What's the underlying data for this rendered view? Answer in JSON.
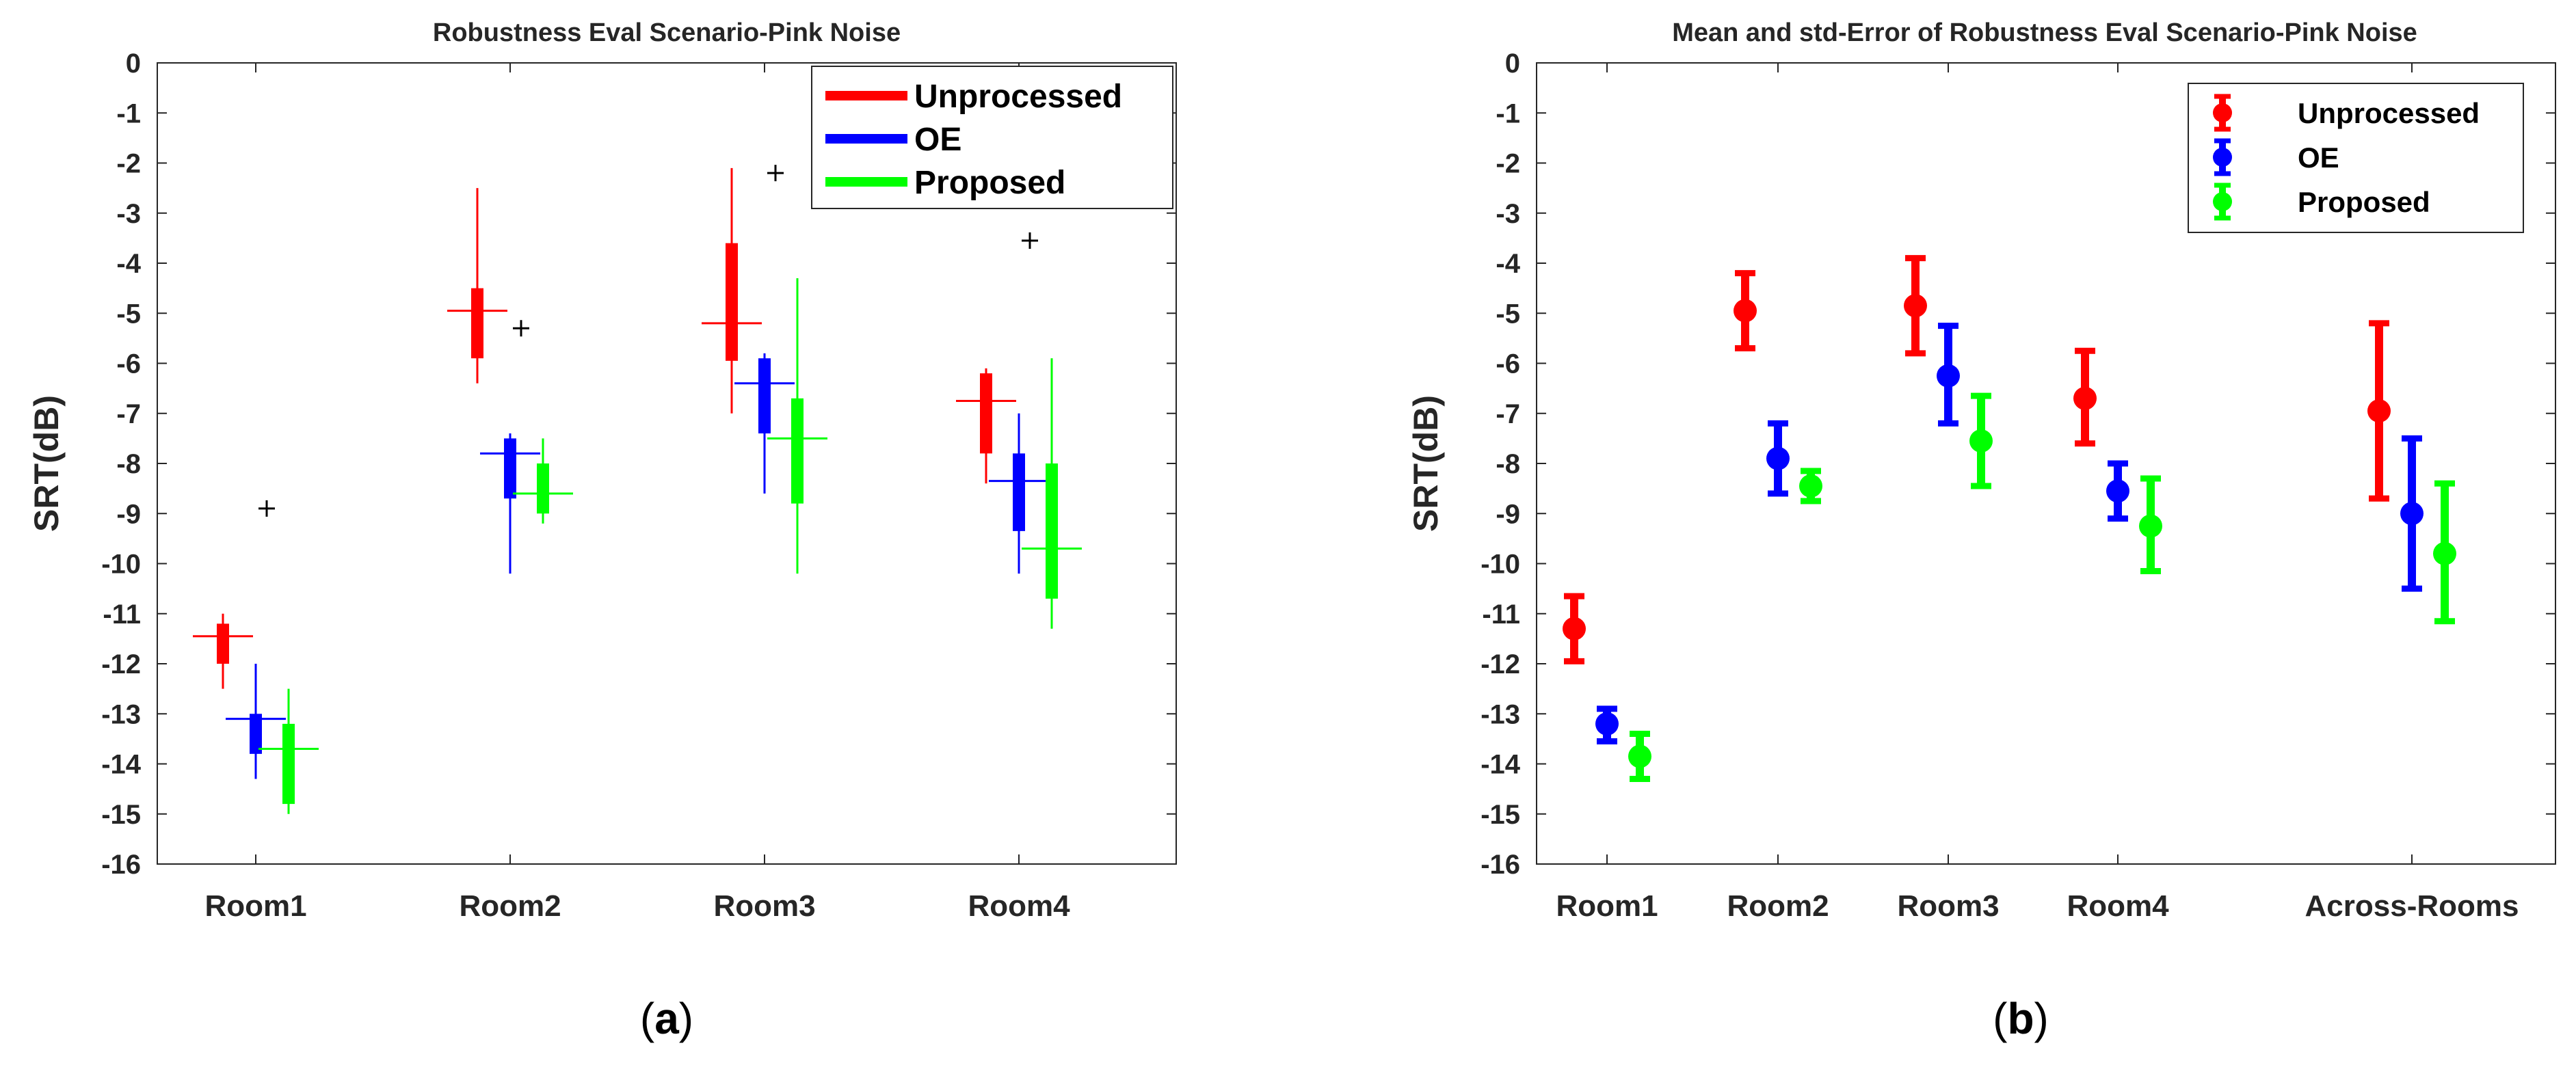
{
  "chart_data": [
    {
      "type": "boxplot",
      "title": "Robustness Eval Scenario-Pink Noise",
      "panel_label": "(a)",
      "panel_label_letter": "a",
      "ylabel": "SRT(dB)",
      "xlabel": "",
      "ylim": [
        -16,
        0
      ],
      "yticks": [
        0,
        -1,
        -2,
        -3,
        -4,
        -5,
        -6,
        -7,
        -8,
        -9,
        -10,
        -11,
        -12,
        -13,
        -14,
        -15,
        -16
      ],
      "grid": false,
      "legend_position": "top-right",
      "categories": [
        "Room1",
        "Room2",
        "Room3",
        "Room4"
      ],
      "series": [
        {
          "name": "Unprocessed",
          "color": "#ff0000",
          "boxes": [
            {
              "whisker_high": -11.0,
              "q3": -11.2,
              "median": -11.45,
              "q1": -12.0,
              "whisker_low": -12.5,
              "outliers": [
                -8.9
              ]
            },
            {
              "whisker_high": -2.5,
              "q3": -4.5,
              "median": -4.95,
              "q1": -5.9,
              "whisker_low": -6.4,
              "outliers": [
                -5.3
              ]
            },
            {
              "whisker_high": -2.1,
              "q3": -3.6,
              "median": -5.2,
              "q1": -5.95,
              "whisker_low": -7.0,
              "outliers": [
                -2.2
              ]
            },
            {
              "whisker_high": -6.1,
              "q3": -6.2,
              "median": -6.75,
              "q1": -7.8,
              "whisker_low": -8.4,
              "outliers": [
                -3.55
              ]
            }
          ]
        },
        {
          "name": "OE",
          "color": "#0000ff",
          "boxes": [
            {
              "whisker_high": -12.0,
              "q3": -13.0,
              "median": -13.1,
              "q1": -13.8,
              "whisker_low": -14.3,
              "outliers": []
            },
            {
              "whisker_high": -7.4,
              "q3": -7.5,
              "median": -7.8,
              "q1": -8.7,
              "whisker_low": -10.2,
              "outliers": []
            },
            {
              "whisker_high": -5.8,
              "q3": -5.9,
              "median": -6.4,
              "q1": -7.4,
              "whisker_low": -8.6,
              "outliers": []
            },
            {
              "whisker_high": -7.0,
              "q3": -7.8,
              "median": -8.35,
              "q1": -9.35,
              "whisker_low": -10.2,
              "outliers": []
            }
          ]
        },
        {
          "name": "Proposed",
          "color": "#00ff00",
          "boxes": [
            {
              "whisker_high": -12.5,
              "q3": -13.2,
              "median": -13.7,
              "q1": -14.8,
              "whisker_low": -15.0,
              "outliers": []
            },
            {
              "whisker_high": -7.5,
              "q3": -8.0,
              "median": -8.6,
              "q1": -9.0,
              "whisker_low": -9.2,
              "outliers": []
            },
            {
              "whisker_high": -4.3,
              "q3": -6.7,
              "median": -7.5,
              "q1": -8.8,
              "whisker_low": -10.2,
              "outliers": []
            },
            {
              "whisker_high": -5.9,
              "q3": -8.0,
              "median": -9.7,
              "q1": -10.7,
              "whisker_low": -11.3,
              "outliers": []
            }
          ]
        }
      ]
    },
    {
      "type": "errorbar",
      "title": "Mean and std-Error of Robustness Eval Scenario-Pink Noise",
      "panel_label": "(b)",
      "panel_label_letter": "b",
      "ylabel": "SRT(dB)",
      "xlabel": "",
      "ylim": [
        -16,
        0
      ],
      "yticks": [
        0,
        -1,
        -2,
        -3,
        -4,
        -5,
        -6,
        -7,
        -8,
        -9,
        -10,
        -11,
        -12,
        -13,
        -14,
        -15,
        -16
      ],
      "grid": false,
      "legend_position": "top-right",
      "categories": [
        "Room1",
        "Room2",
        "Room3",
        "Room4",
        "Across-Rooms"
      ],
      "series": [
        {
          "name": "Unprocessed",
          "color": "#ff0000",
          "mean": [
            -11.3,
            -4.95,
            -4.85,
            -6.7,
            -6.95
          ],
          "upper": [
            -10.65,
            -4.2,
            -3.9,
            -5.75,
            -5.2
          ],
          "lower": [
            -11.95,
            -5.7,
            -5.8,
            -7.6,
            -8.7
          ]
        },
        {
          "name": "OE",
          "color": "#0000ff",
          "mean": [
            -13.2,
            -7.9,
            -6.25,
            -8.55,
            -9.0
          ],
          "upper": [
            -12.9,
            -7.2,
            -5.25,
            -8.0,
            -7.5
          ],
          "lower": [
            -13.55,
            -8.6,
            -7.2,
            -9.1,
            -10.5
          ]
        },
        {
          "name": "Proposed",
          "color": "#00ff00",
          "mean": [
            -13.85,
            -8.45,
            -7.55,
            -9.25,
            -9.8
          ],
          "upper": [
            -13.4,
            -8.15,
            -6.65,
            -8.3,
            -8.4
          ],
          "lower": [
            -14.3,
            -8.75,
            -8.45,
            -10.15,
            -11.15
          ]
        }
      ]
    }
  ]
}
